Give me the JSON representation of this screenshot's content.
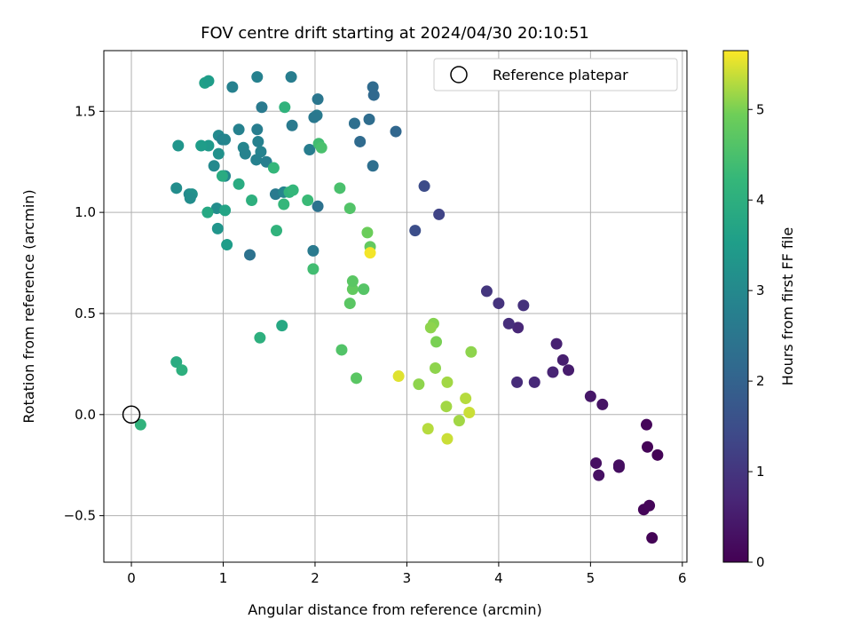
{
  "chart_data": {
    "type": "scatter",
    "title": "FOV centre drift starting at 2024/04/30 20:10:51",
    "xlabel": "Angular distance from reference (arcmin)",
    "ylabel": "Rotation from reference (arcmin)",
    "xlim": [
      -0.3,
      6.05
    ],
    "ylim": [
      -0.73,
      1.8
    ],
    "xticks": [
      0,
      1,
      2,
      3,
      4,
      5,
      6
    ],
    "yticks": [
      -0.5,
      0.0,
      0.5,
      1.0,
      1.5
    ],
    "grid": true,
    "legend": {
      "position": "top-right",
      "entries": [
        "Reference platepar"
      ]
    },
    "reference_point": {
      "x": 0,
      "y": 0
    },
    "colorbar": {
      "label": "Hours from first FF file",
      "range": [
        0,
        5.65
      ],
      "ticks": [
        0,
        1,
        2,
        3,
        4,
        5
      ],
      "colormap": "viridis"
    },
    "points": [
      {
        "x": 5.67,
        "y": -0.61,
        "c": 0.05
      },
      {
        "x": 5.58,
        "y": -0.47,
        "c": 0.08
      },
      {
        "x": 5.64,
        "y": -0.45,
        "c": 0.1
      },
      {
        "x": 5.62,
        "y": -0.16,
        "c": 0.06
      },
      {
        "x": 5.61,
        "y": -0.05,
        "c": 0.12
      },
      {
        "x": 5.73,
        "y": -0.2,
        "c": 0.04
      },
      {
        "x": 5.31,
        "y": -0.26,
        "c": 0.22
      },
      {
        "x": 5.31,
        "y": -0.25,
        "c": 0.25
      },
      {
        "x": 5.06,
        "y": -0.24,
        "c": 0.28
      },
      {
        "x": 5.09,
        "y": -0.3,
        "c": 0.3
      },
      {
        "x": 5.13,
        "y": 0.05,
        "c": 0.35
      },
      {
        "x": 5.0,
        "y": 0.09,
        "c": 0.4
      },
      {
        "x": 4.76,
        "y": 0.22,
        "c": 0.5
      },
      {
        "x": 4.7,
        "y": 0.27,
        "c": 0.55
      },
      {
        "x": 4.63,
        "y": 0.35,
        "c": 0.6
      },
      {
        "x": 4.59,
        "y": 0.21,
        "c": 0.65
      },
      {
        "x": 4.39,
        "y": 0.16,
        "c": 0.75
      },
      {
        "x": 4.2,
        "y": 0.16,
        "c": 0.8
      },
      {
        "x": 4.21,
        "y": 0.43,
        "c": 0.7
      },
      {
        "x": 4.11,
        "y": 0.45,
        "c": 0.85
      },
      {
        "x": 4.27,
        "y": 0.54,
        "c": 0.9
      },
      {
        "x": 4.0,
        "y": 0.55,
        "c": 0.95
      },
      {
        "x": 3.87,
        "y": 0.61,
        "c": 1.0
      },
      {
        "x": 3.35,
        "y": 0.99,
        "c": 1.3
      },
      {
        "x": 3.19,
        "y": 1.13,
        "c": 1.45
      },
      {
        "x": 3.09,
        "y": 0.91,
        "c": 1.5
      },
      {
        "x": 2.88,
        "y": 1.4,
        "c": 2.1
      },
      {
        "x": 2.63,
        "y": 1.62,
        "c": 2.2
      },
      {
        "x": 2.64,
        "y": 1.58,
        "c": 2.15
      },
      {
        "x": 2.59,
        "y": 1.46,
        "c": 2.25
      },
      {
        "x": 2.43,
        "y": 1.44,
        "c": 2.3
      },
      {
        "x": 2.49,
        "y": 1.35,
        "c": 2.2
      },
      {
        "x": 2.63,
        "y": 1.23,
        "c": 2.3
      },
      {
        "x": 2.03,
        "y": 1.56,
        "c": 2.5
      },
      {
        "x": 2.02,
        "y": 1.48,
        "c": 2.6
      },
      {
        "x": 1.99,
        "y": 1.47,
        "c": 2.55
      },
      {
        "x": 1.94,
        "y": 1.31,
        "c": 2.7
      },
      {
        "x": 2.03,
        "y": 1.03,
        "c": 2.4
      },
      {
        "x": 1.98,
        "y": 0.81,
        "c": 2.6
      },
      {
        "x": 1.74,
        "y": 1.67,
        "c": 2.7
      },
      {
        "x": 1.75,
        "y": 1.43,
        "c": 2.6
      },
      {
        "x": 1.42,
        "y": 1.52,
        "c": 2.6
      },
      {
        "x": 1.37,
        "y": 1.67,
        "c": 2.8
      },
      {
        "x": 1.1,
        "y": 1.62,
        "c": 2.8
      },
      {
        "x": 1.17,
        "y": 1.41,
        "c": 2.8
      },
      {
        "x": 1.37,
        "y": 1.41,
        "c": 2.7
      },
      {
        "x": 1.38,
        "y": 1.35,
        "c": 2.8
      },
      {
        "x": 1.41,
        "y": 1.3,
        "c": 2.85
      },
      {
        "x": 1.22,
        "y": 1.32,
        "c": 2.9
      },
      {
        "x": 1.24,
        "y": 1.29,
        "c": 2.85
      },
      {
        "x": 1.36,
        "y": 1.26,
        "c": 2.8
      },
      {
        "x": 1.47,
        "y": 1.25,
        "c": 2.75
      },
      {
        "x": 1.57,
        "y": 1.09,
        "c": 2.6
      },
      {
        "x": 1.66,
        "y": 1.1,
        "c": 2.9
      },
      {
        "x": 1.29,
        "y": 0.79,
        "c": 2.4
      },
      {
        "x": 0.95,
        "y": 1.38,
        "c": 3.0
      },
      {
        "x": 0.99,
        "y": 1.36,
        "c": 2.8
      },
      {
        "x": 1.02,
        "y": 1.36,
        "c": 2.9
      },
      {
        "x": 0.84,
        "y": 1.33,
        "c": 3.4
      },
      {
        "x": 0.76,
        "y": 1.33,
        "c": 3.5
      },
      {
        "x": 0.51,
        "y": 1.33,
        "c": 3.3
      },
      {
        "x": 0.9,
        "y": 1.23,
        "c": 3.0
      },
      {
        "x": 0.95,
        "y": 1.29,
        "c": 3.2
      },
      {
        "x": 1.02,
        "y": 1.18,
        "c": 3.0
      },
      {
        "x": 1.01,
        "y": 1.18,
        "c": 2.95
      },
      {
        "x": 0.49,
        "y": 1.12,
        "c": 3.1
      },
      {
        "x": 0.63,
        "y": 1.09,
        "c": 3.0
      },
      {
        "x": 0.66,
        "y": 1.09,
        "c": 3.2
      },
      {
        "x": 0.64,
        "y": 1.07,
        "c": 3.1
      },
      {
        "x": 0.93,
        "y": 1.02,
        "c": 3.1
      },
      {
        "x": 0.94,
        "y": 0.92,
        "c": 3.3
      },
      {
        "x": 1.02,
        "y": 1.01,
        "c": 3.7
      },
      {
        "x": 0.83,
        "y": 1.0,
        "c": 3.8
      },
      {
        "x": 1.04,
        "y": 0.84,
        "c": 3.5
      },
      {
        "x": 0.8,
        "y": 1.64,
        "c": 3.6
      },
      {
        "x": 0.84,
        "y": 1.65,
        "c": 3.5
      },
      {
        "x": 0.99,
        "y": 1.18,
        "c": 3.9
      },
      {
        "x": 1.17,
        "y": 1.14,
        "c": 3.9
      },
      {
        "x": 1.31,
        "y": 1.06,
        "c": 4.0
      },
      {
        "x": 1.67,
        "y": 1.52,
        "c": 4.1
      },
      {
        "x": 1.55,
        "y": 1.22,
        "c": 4.2
      },
      {
        "x": 1.72,
        "y": 1.1,
        "c": 4.1
      },
      {
        "x": 1.76,
        "y": 1.11,
        "c": 4.2
      },
      {
        "x": 1.66,
        "y": 1.04,
        "c": 4.2
      },
      {
        "x": 1.58,
        "y": 0.91,
        "c": 4.1
      },
      {
        "x": 1.92,
        "y": 1.06,
        "c": 4.3
      },
      {
        "x": 2.04,
        "y": 1.34,
        "c": 4.4
      },
      {
        "x": 2.07,
        "y": 1.32,
        "c": 4.5
      },
      {
        "x": 2.27,
        "y": 1.12,
        "c": 4.5
      },
      {
        "x": 2.38,
        "y": 1.02,
        "c": 4.6
      },
      {
        "x": 1.98,
        "y": 0.72,
        "c": 4.4
      },
      {
        "x": 1.64,
        "y": 0.44,
        "c": 3.8
      },
      {
        "x": 1.4,
        "y": 0.38,
        "c": 4.0
      },
      {
        "x": 0.49,
        "y": 0.26,
        "c": 3.9
      },
      {
        "x": 0.55,
        "y": 0.22,
        "c": 4.0
      },
      {
        "x": 0.1,
        "y": -0.05,
        "c": 4.1
      },
      {
        "x": 2.29,
        "y": 0.32,
        "c": 4.6
      },
      {
        "x": 2.45,
        "y": 0.18,
        "c": 4.7
      },
      {
        "x": 2.38,
        "y": 0.55,
        "c": 4.7
      },
      {
        "x": 2.41,
        "y": 0.62,
        "c": 4.8
      },
      {
        "x": 2.41,
        "y": 0.66,
        "c": 4.7
      },
      {
        "x": 2.53,
        "y": 0.62,
        "c": 4.65
      },
      {
        "x": 2.57,
        "y": 0.9,
        "c": 4.9
      },
      {
        "x": 2.6,
        "y": 0.83,
        "c": 4.8
      },
      {
        "x": 2.6,
        "y": 0.8,
        "c": 5.6
      },
      {
        "x": 2.91,
        "y": 0.19,
        "c": 5.5
      },
      {
        "x": 3.13,
        "y": 0.15,
        "c": 5.1
      },
      {
        "x": 3.29,
        "y": 0.45,
        "c": 5.05
      },
      {
        "x": 3.26,
        "y": 0.43,
        "c": 5.1
      },
      {
        "x": 3.32,
        "y": 0.36,
        "c": 5.0
      },
      {
        "x": 3.31,
        "y": 0.23,
        "c": 5.1
      },
      {
        "x": 3.44,
        "y": 0.16,
        "c": 5.2
      },
      {
        "x": 3.43,
        "y": 0.04,
        "c": 5.2
      },
      {
        "x": 3.7,
        "y": 0.31,
        "c": 5.1
      },
      {
        "x": 3.64,
        "y": 0.08,
        "c": 5.3
      },
      {
        "x": 3.68,
        "y": 0.01,
        "c": 5.4
      },
      {
        "x": 3.57,
        "y": -0.03,
        "c": 5.2
      },
      {
        "x": 3.23,
        "y": -0.07,
        "c": 5.3
      },
      {
        "x": 3.44,
        "y": -0.12,
        "c": 5.4
      }
    ]
  }
}
